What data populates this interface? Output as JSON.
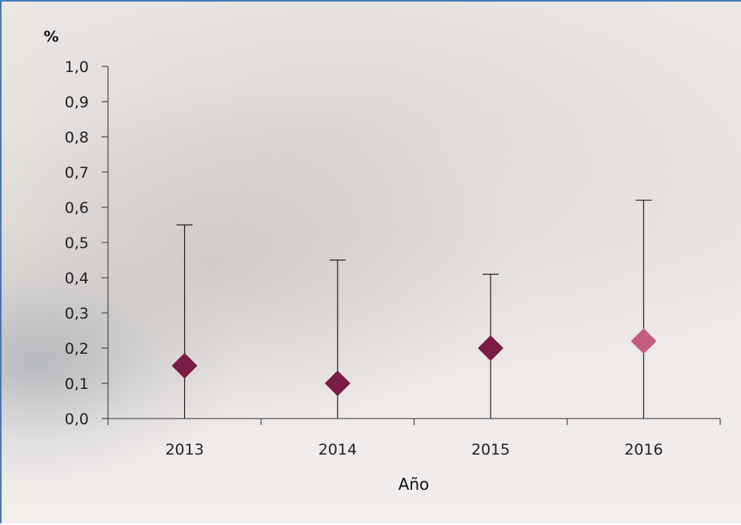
{
  "chart_data": {
    "type": "scatter",
    "title": "",
    "ylabel_top": "%",
    "xlabel": "Año",
    "categories": [
      "2013",
      "2014",
      "2015",
      "2016"
    ],
    "series": [
      {
        "values": [
          0.15,
          0.1,
          0.2,
          0.22
        ],
        "error_upper": [
          0.55,
          0.45,
          0.41,
          0.62
        ],
        "error_lower": [
          0.0,
          0.0,
          0.0,
          0.0
        ],
        "colors": [
          "#7a1c45",
          "#7a1c45",
          "#7a1c45",
          "#c55c80"
        ]
      }
    ],
    "ylim": [
      0.0,
      1.0
    ],
    "yticks": [
      "0,0",
      "0,1",
      "0,2",
      "0,3",
      "0,4",
      "0,5",
      "0,6",
      "0,7",
      "0,8",
      "0,9",
      "1,0"
    ],
    "grid": false,
    "marker": "diamond",
    "axis_color": "#555555",
    "error_bar_color": "#222222"
  }
}
